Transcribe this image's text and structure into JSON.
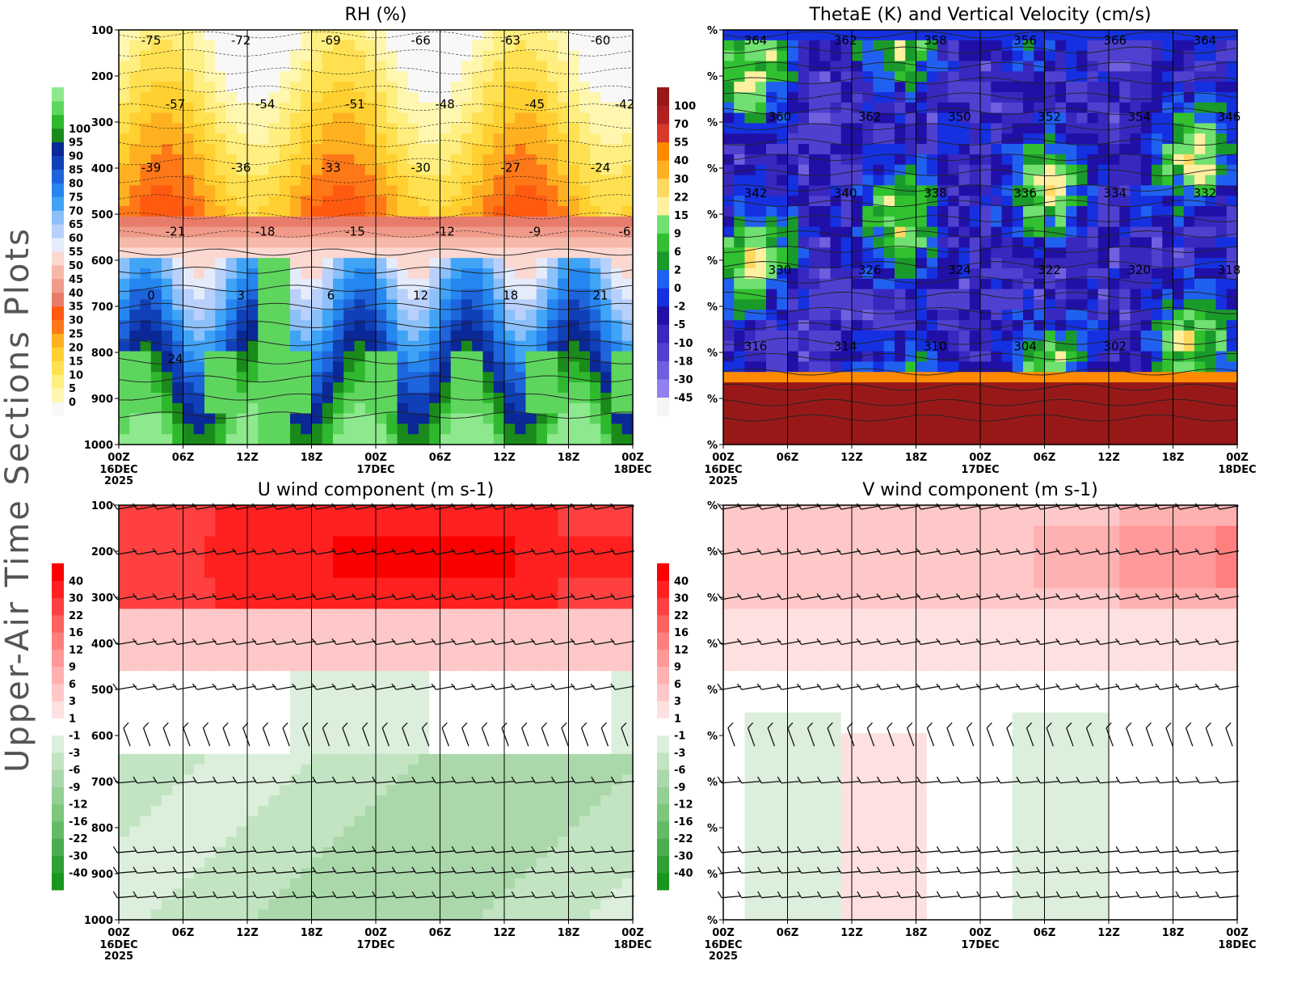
{
  "figure": {
    "side_title": "Upper-Air Time Sections Plots"
  },
  "chart_data": [
    {
      "id": "rh",
      "type": "heatmap",
      "title": "RH (%)",
      "x_ticks": [
        "00Z",
        "06Z",
        "12Z",
        "18Z",
        "00Z",
        "06Z",
        "12Z",
        "18Z",
        "00Z"
      ],
      "x_date_labels": [
        {
          "tick": 0,
          "lines": [
            "16DEC",
            "2025"
          ]
        },
        {
          "tick": 4,
          "lines": [
            "17DEC"
          ]
        },
        {
          "tick": 8,
          "lines": [
            "18DEC"
          ]
        }
      ],
      "y_ticks": [
        "100",
        "200",
        "300",
        "400",
        "500",
        "600",
        "700",
        "800",
        "900",
        "1000"
      ],
      "ylim": [
        100,
        1000
      ],
      "y_inverted": true,
      "colorbar": {
        "labels": [
          "0",
          "5",
          "10",
          "15",
          "20",
          "25",
          "30",
          "35",
          "40",
          "45",
          "50",
          "55",
          "60",
          "65",
          "70",
          "75",
          "80",
          "85",
          "90",
          "95",
          "100"
        ],
        "colors": [
          "#f8f8f8",
          "#fff7b0",
          "#ffee80",
          "#ffe050",
          "#ffd030",
          "#ffb020",
          "#ff7818",
          "#ff5a10",
          "#e87c6a",
          "#f09a8a",
          "#f6b8a8",
          "#fbd8d0",
          "#e4ecfc",
          "#b8d0fb",
          "#8cc0fa",
          "#40a4f6",
          "#2586f0",
          "#1e64dc",
          "#1040b8",
          "#0a2896",
          "#1a8a1a",
          "#2eb82e",
          "#5ed65e",
          "#8ee88e"
        ]
      },
      "contour_labels": [
        "-75",
        "-72",
        "-69",
        "-66",
        "-63",
        "-60",
        "-57",
        "-54",
        "-51",
        "-48",
        "-45",
        "-42",
        "-39",
        "-36",
        "-33",
        "-30",
        "-27",
        "-24",
        "-21",
        "-18",
        "-15",
        "-12",
        "-9",
        "-6",
        "0",
        "3",
        "6",
        "12",
        "18",
        "21",
        "24"
      ]
    },
    {
      "id": "thetae",
      "type": "heatmap",
      "title": "ThetaE (K) and Vertical Velocity (cm/s)",
      "x_ticks": [
        "00Z",
        "06Z",
        "12Z",
        "18Z",
        "00Z",
        "06Z",
        "12Z",
        "18Z",
        "00Z"
      ],
      "x_date_labels": [
        {
          "tick": 0,
          "lines": [
            "16DEC",
            "2025"
          ]
        },
        {
          "tick": 4,
          "lines": [
            "17DEC"
          ]
        },
        {
          "tick": 8,
          "lines": [
            "18DEC"
          ]
        }
      ],
      "y_ticks": [
        "%",
        "%",
        "%",
        "%",
        "%",
        "%",
        "%",
        "%",
        "%",
        "%"
      ],
      "y_inverted": true,
      "colorbar": {
        "labels": [
          "-45",
          "-30",
          "-18",
          "-10",
          "-5",
          "-2",
          "0",
          "2",
          "6",
          "9",
          "15",
          "22",
          "30",
          "40",
          "55",
          "70",
          "100"
        ],
        "colors": [
          "#f4f4f4",
          "#9080f0",
          "#7060e0",
          "#5040d0",
          "#3828c0",
          "#2010a8",
          "#1530e0",
          "#2060f0",
          "#1a9a2a",
          "#30c030",
          "#70e070",
          "#fff0a0",
          "#ffd860",
          "#ffb020",
          "#ff8a00",
          "#d83a2a",
          "#b02020",
          "#981818"
        ]
      },
      "contour_labels": [
        "364",
        "362",
        "358",
        "356",
        "366",
        "364",
        "360",
        "362",
        "350",
        "352",
        "354",
        "346",
        "342",
        "340",
        "338",
        "336",
        "334",
        "332",
        "330",
        "326",
        "324",
        "322",
        "320",
        "318",
        "316",
        "314",
        "310",
        "304",
        "302"
      ]
    },
    {
      "id": "u",
      "type": "heatmap",
      "title": "U wind component (m s-1)",
      "x_ticks": [
        "00Z",
        "06Z",
        "12Z",
        "18Z",
        "00Z",
        "06Z",
        "12Z",
        "18Z",
        "00Z"
      ],
      "x_date_labels": [
        {
          "tick": 0,
          "lines": [
            "16DEC",
            "2025"
          ]
        },
        {
          "tick": 4,
          "lines": [
            "17DEC"
          ]
        },
        {
          "tick": 8,
          "lines": [
            "18DEC"
          ]
        }
      ],
      "y_ticks": [
        "100",
        "200",
        "300",
        "400",
        "500",
        "600",
        "700",
        "800",
        "900",
        "1000"
      ],
      "ylim": [
        100,
        1000
      ],
      "y_inverted": true,
      "colorbar": {
        "labels": [
          "-40",
          "-30",
          "-22",
          "-16",
          "-12",
          "-9",
          "-6",
          "-3",
          "-1",
          "1",
          "3",
          "6",
          "9",
          "12",
          "16",
          "22",
          "30",
          "40"
        ],
        "colors": [
          "#18961e",
          "#2ea036",
          "#4aae4e",
          "#64ba66",
          "#7cc67e",
          "#94d094",
          "#aad8aa",
          "#c2e4c2",
          "#dcefdc",
          "#ffffff",
          "#ffe0e0",
          "#ffc8c8",
          "#ffb0b0",
          "#ff9898",
          "#ff7e7e",
          "#ff6060",
          "#ff4040",
          "#ff2020",
          "#fa0000"
        ]
      }
    },
    {
      "id": "v",
      "type": "heatmap",
      "title": "V wind component (m s-1)",
      "x_ticks": [
        "00Z",
        "06Z",
        "12Z",
        "18Z",
        "00Z",
        "06Z",
        "12Z",
        "18Z",
        "00Z"
      ],
      "x_date_labels": [
        {
          "tick": 0,
          "lines": [
            "16DEC",
            "2025"
          ]
        },
        {
          "tick": 4,
          "lines": [
            "17DEC"
          ]
        },
        {
          "tick": 8,
          "lines": [
            "18DEC"
          ]
        }
      ],
      "y_ticks": [
        "%",
        "%",
        "%",
        "%",
        "%",
        "%",
        "%",
        "%",
        "%",
        "%"
      ],
      "y_inverted": true,
      "colorbar": {
        "labels": [
          "-40",
          "-30",
          "-22",
          "-16",
          "-12",
          "-9",
          "-6",
          "-3",
          "-1",
          "1",
          "3",
          "6",
          "9",
          "12",
          "16",
          "22",
          "30",
          "40"
        ],
        "colors": [
          "#18961e",
          "#2ea036",
          "#4aae4e",
          "#64ba66",
          "#7cc67e",
          "#94d094",
          "#aad8aa",
          "#c2e4c2",
          "#dcefdc",
          "#ffffff",
          "#ffe0e0",
          "#ffc8c8",
          "#ffb0b0",
          "#ff9898",
          "#ff7e7e",
          "#ff6060",
          "#ff4040",
          "#ff2020",
          "#fa0000"
        ]
      }
    }
  ]
}
